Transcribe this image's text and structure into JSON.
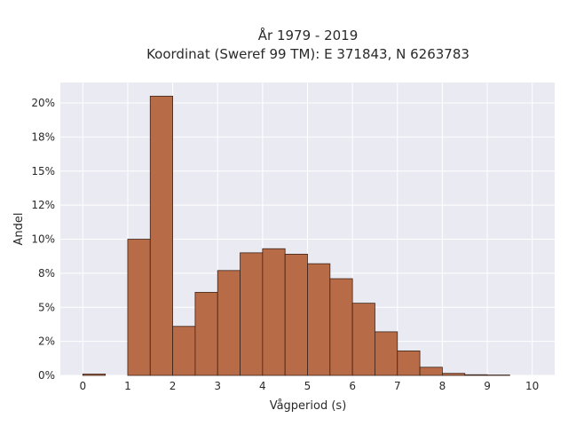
{
  "chart_data": {
    "type": "bar",
    "title": [
      "År 1979 - 2019",
      "Koordinat (Sweref 99 TM): E 371843, N 6263783"
    ],
    "xlabel": "Vågperiod (s)",
    "ylabel": "Andel",
    "xlim": [
      -0.5,
      10.5
    ],
    "ylim": [
      0,
      0.215
    ],
    "xticks": [
      0,
      1,
      2,
      3,
      4,
      5,
      6,
      7,
      8,
      9,
      10
    ],
    "yticks": [
      {
        "value": 0.0,
        "label": "0%"
      },
      {
        "value": 0.025,
        "label": "2%"
      },
      {
        "value": 0.05,
        "label": "5%"
      },
      {
        "value": 0.075,
        "label": "8%"
      },
      {
        "value": 0.1,
        "label": "10%"
      },
      {
        "value": 0.125,
        "label": "12%"
      },
      {
        "value": 0.15,
        "label": "15%"
      },
      {
        "value": 0.175,
        "label": "18%"
      },
      {
        "value": 0.2,
        "label": "20%"
      }
    ],
    "bin_width": 0.5,
    "bins": [
      {
        "x0": 0.0,
        "value": 0.001
      },
      {
        "x0": 0.5,
        "value": 0.0
      },
      {
        "x0": 1.0,
        "value": 0.1
      },
      {
        "x0": 1.5,
        "value": 0.205
      },
      {
        "x0": 2.0,
        "value": 0.036
      },
      {
        "x0": 2.5,
        "value": 0.061
      },
      {
        "x0": 3.0,
        "value": 0.077
      },
      {
        "x0": 3.5,
        "value": 0.09
      },
      {
        "x0": 4.0,
        "value": 0.093
      },
      {
        "x0": 4.5,
        "value": 0.089
      },
      {
        "x0": 5.0,
        "value": 0.082
      },
      {
        "x0": 5.5,
        "value": 0.071
      },
      {
        "x0": 6.0,
        "value": 0.053
      },
      {
        "x0": 6.5,
        "value": 0.032
      },
      {
        "x0": 7.0,
        "value": 0.018
      },
      {
        "x0": 7.5,
        "value": 0.006
      },
      {
        "x0": 8.0,
        "value": 0.0015
      },
      {
        "x0": 8.5,
        "value": 0.0005
      },
      {
        "x0": 9.0,
        "value": 0.0003
      }
    ],
    "grid": true,
    "colors": {
      "bar_fill": "#b86b47",
      "bar_edge": "#3d2418",
      "plot_bg": "#eaeaf2",
      "grid": "#ffffff"
    }
  }
}
